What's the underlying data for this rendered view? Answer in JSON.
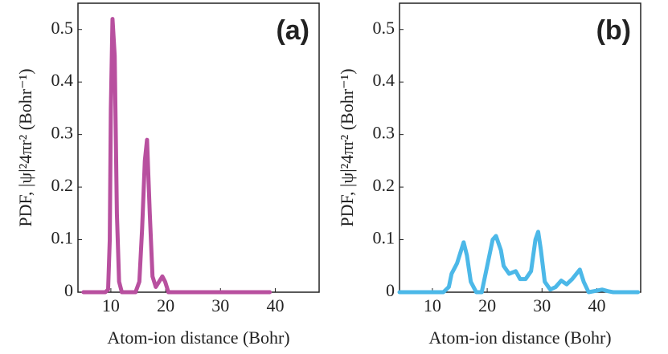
{
  "chart_data": [
    {
      "type": "line",
      "annotation": "(a)",
      "xlabel": "Atom-ion distance (Bohr)",
      "ylabel": "PDF, |ψ|²4πr² (Bohr⁻¹)",
      "xlim": [
        4,
        48
      ],
      "ylim": [
        0,
        0.55
      ],
      "xticks": [
        10,
        20,
        30,
        40
      ],
      "yticks": [
        0,
        0.1,
        0.2,
        0.3,
        0.4,
        0.5
      ],
      "x": [
        5,
        9,
        9.5,
        9.8,
        10.0,
        10.3,
        10.7,
        11.1,
        11.5,
        12,
        14.5,
        15.2,
        15.7,
        16.2,
        16.6,
        17.1,
        17.6,
        18.2,
        18.8,
        19.4,
        19.9,
        20.5,
        39
      ],
      "series": [
        {
          "name": "(a)",
          "color": "#b8509f",
          "values": [
            0,
            0,
            0.005,
            0.1,
            0.35,
            0.52,
            0.45,
            0.15,
            0.02,
            0,
            0,
            0.02,
            0.12,
            0.25,
            0.29,
            0.15,
            0.03,
            0.01,
            0.02,
            0.03,
            0.02,
            0,
            0
          ]
        }
      ]
    },
    {
      "type": "line",
      "annotation": "(b)",
      "xlabel": "Atom-ion distance (Bohr)",
      "ylabel": "PDF, |ψ|²4πr² (Bohr⁻¹)",
      "xlim": [
        4,
        48
      ],
      "ylim": [
        0,
        0.55
      ],
      "xticks": [
        10,
        20,
        30,
        40
      ],
      "yticks": [
        0,
        0.1,
        0.2,
        0.3,
        0.4,
        0.5
      ],
      "x": [
        4,
        12,
        13,
        13.5,
        14.5,
        15.7,
        16.3,
        17,
        18,
        19,
        20,
        21,
        21.6,
        22.5,
        23,
        24,
        25.2,
        26,
        27,
        28,
        28.8,
        29.3,
        29.8,
        30.5,
        31.5,
        32.5,
        33.5,
        34.5,
        35.5,
        36.9,
        37.6,
        38.5,
        40,
        41,
        42,
        43,
        47.5
      ],
      "series": [
        {
          "name": "(b)",
          "color": "#4cb8e8",
          "values": [
            0,
            0,
            0.01,
            0.035,
            0.055,
            0.095,
            0.07,
            0.02,
            0,
            0,
            0.05,
            0.1,
            0.107,
            0.08,
            0.05,
            0.035,
            0.04,
            0.025,
            0.025,
            0.04,
            0.1,
            0.115,
            0.08,
            0.02,
            0.005,
            0.01,
            0.022,
            0.015,
            0.025,
            0.043,
            0.02,
            0,
            0.003,
            0.005,
            0.002,
            0,
            0
          ]
        }
      ]
    }
  ]
}
